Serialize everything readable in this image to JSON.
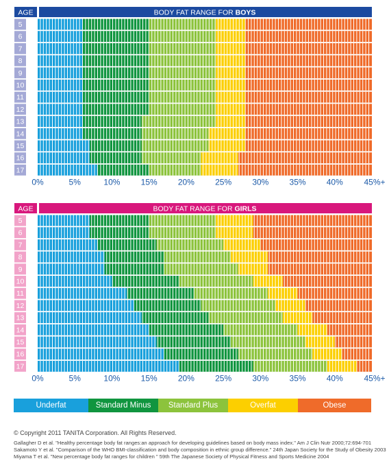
{
  "chart_data": [
    {
      "type": "heatmap",
      "title_prefix": "BODY FAT RANGE FOR ",
      "title_bold": "BOYS",
      "age_header": "AGE",
      "accent": "#1c4aa0",
      "age_label_bg": "#a4a9d6",
      "ages": [
        "5",
        "6",
        "7",
        "8",
        "9",
        "10",
        "11",
        "12",
        "13",
        "14",
        "15",
        "16",
        "17"
      ],
      "x_ticks": [
        "0%",
        "5%",
        "10%",
        "15%",
        "20%",
        "25%",
        "30%",
        "35%",
        "40%",
        "45%+"
      ],
      "xlim": [
        0,
        45
      ],
      "tick_color": "#1c5aa8",
      "thresholds": [
        [
          6,
          15,
          24,
          28
        ],
        [
          6,
          15,
          24,
          28
        ],
        [
          6,
          15,
          24,
          28
        ],
        [
          6,
          15,
          24,
          28
        ],
        [
          6,
          15,
          24,
          28
        ],
        [
          6,
          15,
          24,
          28
        ],
        [
          6,
          15,
          24,
          28
        ],
        [
          6,
          15,
          24,
          28
        ],
        [
          6,
          14,
          24,
          28
        ],
        [
          6,
          14,
          23,
          28
        ],
        [
          7,
          14,
          23,
          28
        ],
        [
          7,
          14,
          22,
          27
        ],
        [
          8,
          15,
          22,
          27
        ]
      ]
    },
    {
      "type": "heatmap",
      "title_prefix": "BODY FAT RANGE FOR ",
      "title_bold": "GIRLS",
      "age_header": "AGE",
      "accent": "#d8177c",
      "age_label_bg": "#f2a3c9",
      "ages": [
        "5",
        "6",
        "7",
        "8",
        "9",
        "10",
        "11",
        "12",
        "13",
        "14",
        "15",
        "16",
        "17"
      ],
      "x_ticks": [
        "0%",
        "5%",
        "10%",
        "15%",
        "20%",
        "25%",
        "30%",
        "35%",
        "40%",
        "45%+"
      ],
      "xlim": [
        0,
        45
      ],
      "tick_color": "#1c5aa8",
      "thresholds": [
        [
          7,
          15,
          24,
          29
        ],
        [
          7,
          15,
          24,
          29
        ],
        [
          8,
          16,
          25,
          30
        ],
        [
          9,
          17,
          26,
          31
        ],
        [
          9,
          17,
          27,
          31
        ],
        [
          10,
          19,
          29,
          33
        ],
        [
          12,
          21,
          31,
          35
        ],
        [
          13,
          22,
          32,
          36
        ],
        [
          14,
          23,
          33,
          37
        ],
        [
          15,
          25,
          35,
          39
        ],
        [
          16,
          26,
          36,
          40
        ],
        [
          17,
          27,
          37,
          41
        ],
        [
          19,
          29,
          39,
          43
        ]
      ]
    }
  ],
  "legend": [
    {
      "label": "Underfat",
      "color": "#19a0dc"
    },
    {
      "label": "Standard Minus",
      "color": "#10953f"
    },
    {
      "label": "Standard Plus",
      "color": "#8cc33c"
    },
    {
      "label": "Overfat",
      "color": "#fccf00"
    },
    {
      "label": "Obese",
      "color": "#ef6b2a"
    }
  ],
  "credits": {
    "copyright": "© Copyright 2011 TANITA Corporation. All Rights Reserved.",
    "references": [
      "Gallagher D et al. \"Healthy percentage body fat ranges:an approach for developing guidelines based on body mass index.\" Am J Clin Nutr 2000;72:694-701",
      "Sakamoto Y et al. \"Comparison of the WHO BMI-classification and body composition in ethnic group difference.\" 24th Japan Society for the Study of Obesity 2003",
      "Miyama T et al. \"New percentage body fat ranges for children \" 59th The Japanese Society of Physical Fitness and Sports Medicine 2004"
    ]
  }
}
